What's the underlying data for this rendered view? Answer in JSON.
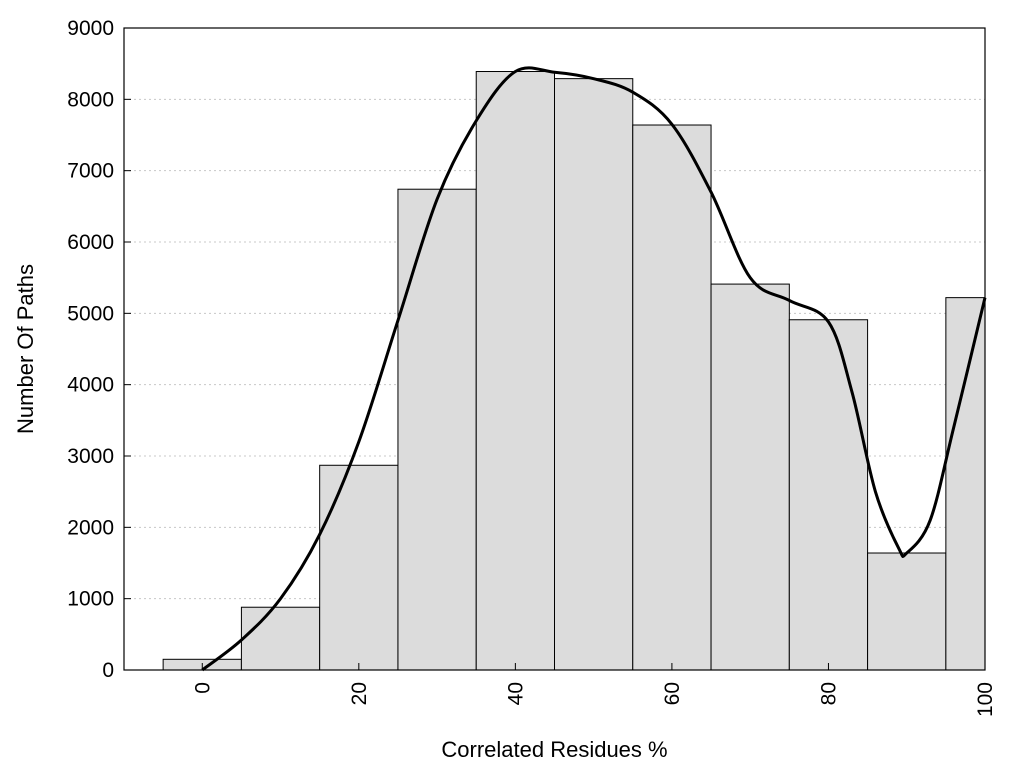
{
  "chart_data": {
    "type": "bar",
    "xlabel": "Correlated Residues %",
    "ylabel": "Number Of Paths",
    "xlim": [
      -10,
      100
    ],
    "ylim": [
      0,
      9000
    ],
    "grid": "horizontal dotted",
    "bin_width": 10,
    "bars": [
      {
        "x": 0,
        "value": 150
      },
      {
        "x": 10,
        "value": 880
      },
      {
        "x": 20,
        "value": 2870
      },
      {
        "x": 30,
        "value": 6740
      },
      {
        "x": 40,
        "value": 8390
      },
      {
        "x": 50,
        "value": 8290
      },
      {
        "x": 60,
        "value": 7640
      },
      {
        "x": 70,
        "value": 5410
      },
      {
        "x": 80,
        "value": 4910
      },
      {
        "x": 90,
        "value": 1640
      },
      {
        "x": 100,
        "value": 5220
      }
    ],
    "curve": [
      {
        "x": 0,
        "y": 0
      },
      {
        "x": 5,
        "y": 420
      },
      {
        "x": 10,
        "y": 1000
      },
      {
        "x": 15,
        "y": 1900
      },
      {
        "x": 20,
        "y": 3200
      },
      {
        "x": 25,
        "y": 4900
      },
      {
        "x": 30,
        "y": 6600
      },
      {
        "x": 35,
        "y": 7700
      },
      {
        "x": 40,
        "y": 8390
      },
      {
        "x": 45,
        "y": 8380
      },
      {
        "x": 50,
        "y": 8290
      },
      {
        "x": 55,
        "y": 8100
      },
      {
        "x": 60,
        "y": 7650
      },
      {
        "x": 65,
        "y": 6700
      },
      {
        "x": 70,
        "y": 5500
      },
      {
        "x": 75,
        "y": 5180
      },
      {
        "x": 80,
        "y": 4880
      },
      {
        "x": 83,
        "y": 3900
      },
      {
        "x": 86,
        "y": 2500
      },
      {
        "x": 89,
        "y": 1700
      },
      {
        "x": 90,
        "y": 1640
      },
      {
        "x": 93,
        "y": 2100
      },
      {
        "x": 96,
        "y": 3400
      },
      {
        "x": 100,
        "y": 5220
      }
    ],
    "yticks": [
      0,
      1000,
      2000,
      3000,
      4000,
      5000,
      6000,
      7000,
      8000,
      9000
    ],
    "ytick_labels": [
      "0",
      "1000",
      "2000",
      "3000",
      "4000",
      "5000",
      "6000",
      "7000",
      "8000",
      "9000"
    ],
    "xticks": [
      0,
      20,
      40,
      60,
      80,
      100
    ],
    "xtick_labels": [
      "0",
      "20",
      "40",
      "60",
      "80",
      "100"
    ],
    "colors": {
      "bar_fill": "#dcdcdc",
      "bar_stroke": "#000000",
      "curve": "#000000",
      "grid": "#c8c8c8"
    }
  }
}
